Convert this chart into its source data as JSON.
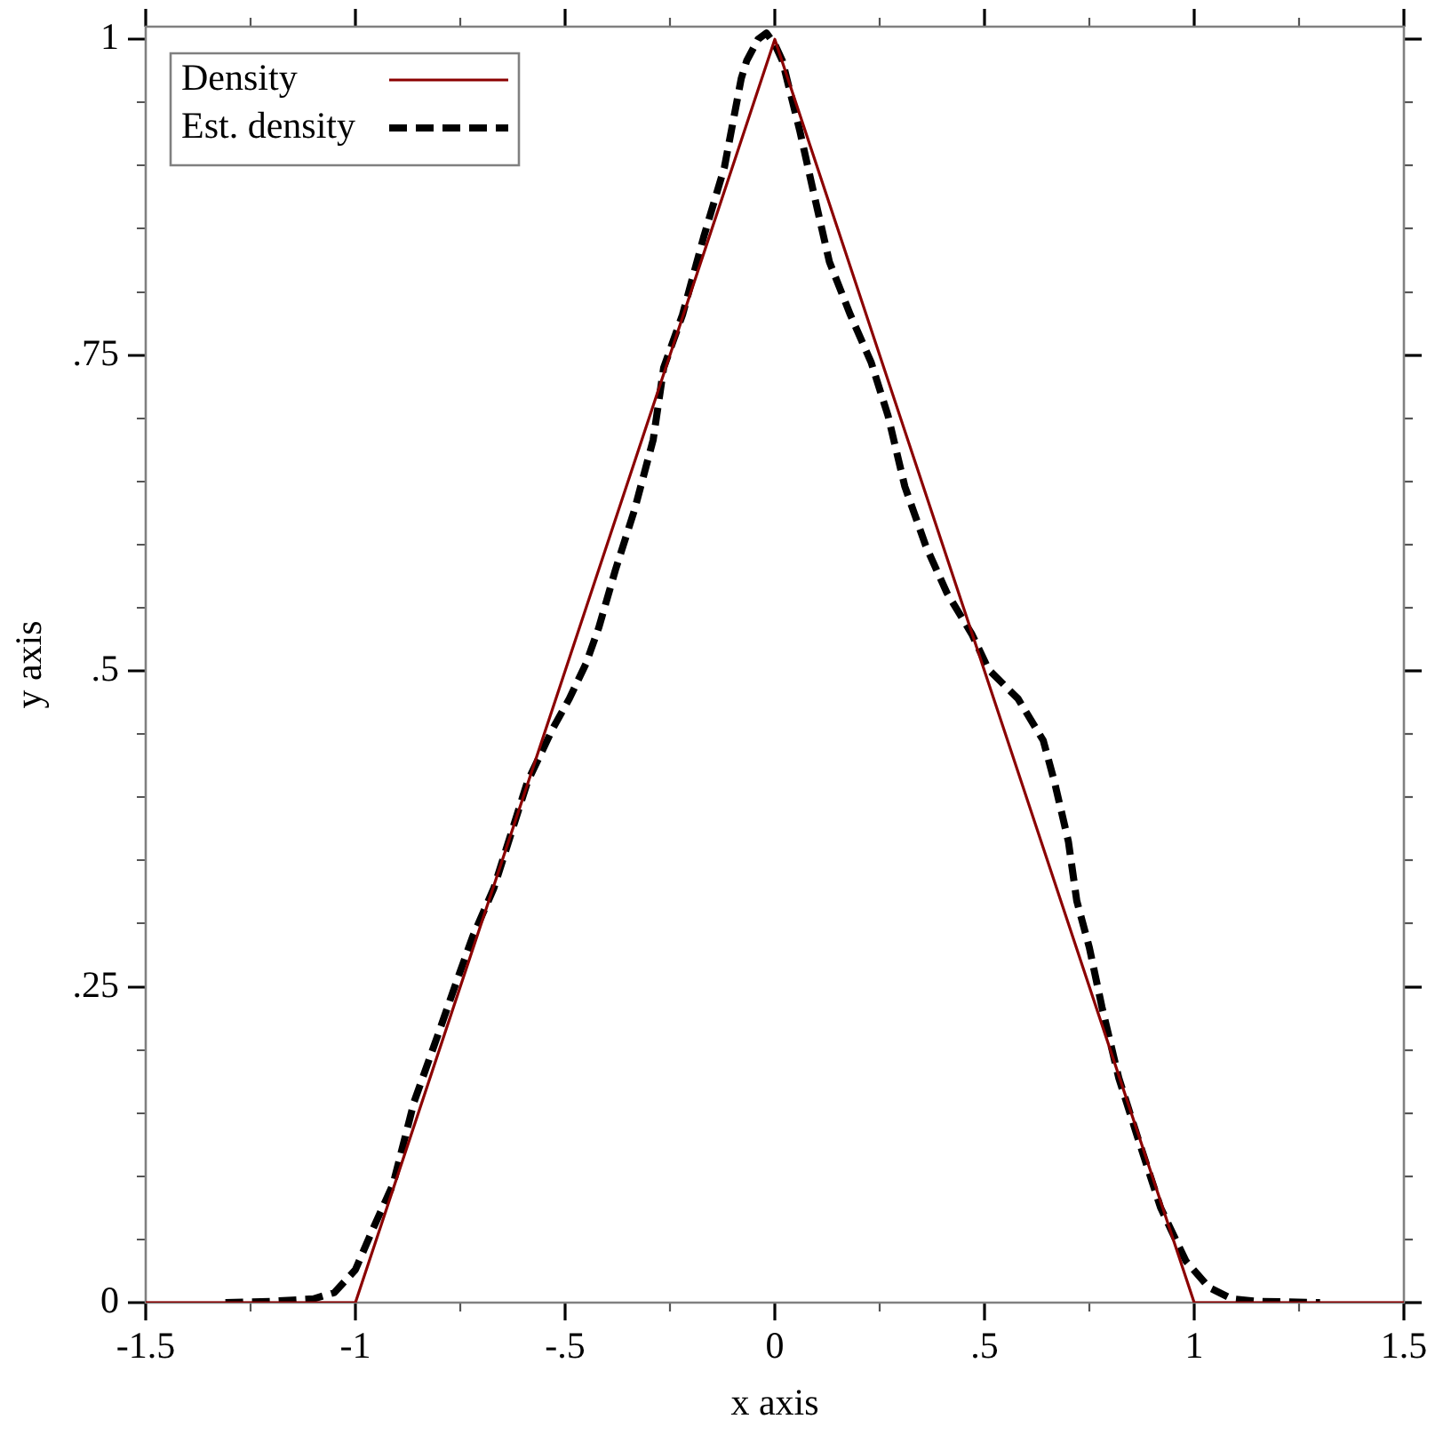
{
  "chart_data": {
    "type": "line",
    "xlabel": "x axis",
    "ylabel": "y axis",
    "xlim": [
      -1.5,
      1.5
    ],
    "ylim": [
      0,
      1.01
    ],
    "xticks": [
      -1.5,
      {
        "value": -1.25,
        "label": null
      },
      -1,
      {
        "value": -0.75,
        "label": null
      },
      {
        "value": -0.5,
        "label": "-.5"
      },
      {
        "value": -0.25,
        "label": null
      },
      0,
      {
        "value": 0.25,
        "label": null
      },
      {
        "value": 0.5,
        "label": ".5"
      },
      {
        "value": 0.75,
        "label": null
      },
      1,
      {
        "value": 1.25,
        "label": null
      },
      1.5
    ],
    "yticks": [
      0,
      {
        "value": 0.05,
        "label": null
      },
      {
        "value": 0.1,
        "label": null
      },
      {
        "value": 0.15,
        "label": null
      },
      {
        "value": 0.2,
        "label": null
      },
      {
        "value": 0.25,
        "label": ".25"
      },
      {
        "value": 0.3,
        "label": null
      },
      {
        "value": 0.35,
        "label": null
      },
      {
        "value": 0.4,
        "label": null
      },
      {
        "value": 0.45,
        "label": null
      },
      {
        "value": 0.5,
        "label": ".5"
      },
      {
        "value": 0.55,
        "label": null
      },
      {
        "value": 0.6,
        "label": null
      },
      {
        "value": 0.65,
        "label": null
      },
      {
        "value": 0.7,
        "label": null
      },
      {
        "value": 0.75,
        "label": ".75"
      },
      {
        "value": 0.8,
        "label": null
      },
      {
        "value": 0.85,
        "label": null
      },
      {
        "value": 0.9,
        "label": null
      },
      {
        "value": 0.95,
        "label": null
      },
      1
    ],
    "series": [
      {
        "name": "Density",
        "color": "#8b0000",
        "line_style": "solid",
        "x": [
          -1.5,
          -1,
          0,
          1,
          1.5
        ],
        "values": [
          0,
          0,
          1,
          0,
          0
        ]
      },
      {
        "name": "Est. density",
        "color": "#000000",
        "line_style": "dashed",
        "x": [
          -1.31,
          -1.2,
          -1.15,
          -1.1,
          -1.05,
          -1.0,
          -0.96,
          -0.91,
          -0.86,
          -0.8,
          -0.76,
          -0.72,
          -0.67,
          -0.63,
          -0.59,
          -0.53,
          -0.49,
          -0.45,
          -0.42,
          -0.38,
          -0.335,
          -0.29,
          -0.265,
          -0.22,
          -0.17,
          -0.12,
          -0.08,
          -0.067,
          -0.04,
          -0.02,
          0.0,
          0.018,
          0.06,
          0.095,
          0.13,
          0.18,
          0.23,
          0.27,
          0.31,
          0.36,
          0.41,
          0.47,
          0.51,
          0.58,
          0.64,
          0.667,
          0.7,
          0.72,
          0.75,
          0.78,
          0.82,
          0.865,
          0.92,
          0.98,
          1.035,
          1.09,
          1.15,
          1.3
        ],
        "values": [
          0,
          0.001,
          0.002,
          0.003,
          0.008,
          0.026,
          0.057,
          0.094,
          0.159,
          0.215,
          0.253,
          0.29,
          0.328,
          0.37,
          0.412,
          0.454,
          0.478,
          0.506,
          0.534,
          0.58,
          0.627,
          0.683,
          0.74,
          0.782,
          0.843,
          0.899,
          0.969,
          0.983,
          1.0,
          1.005,
          0.996,
          0.983,
          0.927,
          0.875,
          0.824,
          0.782,
          0.744,
          0.702,
          0.646,
          0.599,
          0.562,
          0.529,
          0.501,
          0.478,
          0.445,
          0.412,
          0.365,
          0.318,
          0.281,
          0.234,
          0.178,
          0.131,
          0.075,
          0.033,
          0.012,
          0.003,
          0.001,
          0
        ]
      }
    ],
    "legend": "top left"
  }
}
